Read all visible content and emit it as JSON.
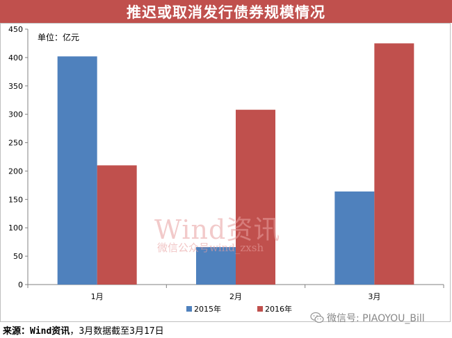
{
  "title": "推迟或取消发行债券规模情况",
  "unit": "单位：亿元",
  "watermark": {
    "main": "Wind资讯",
    "sub": "微信公众号wind_zxsh"
  },
  "wechat_tag": "微信号: PIAOYOU_Bill",
  "footer": {
    "source_label": "来源：Wind资讯",
    "source_note": "，3月数据截至3月17日"
  },
  "colors": {
    "series_2015": "#4f81bd",
    "series_2016": "#c0504d",
    "title_bg": "#c0504d"
  },
  "chart_data": {
    "type": "bar",
    "categories": [
      "1月",
      "2月",
      "3月"
    ],
    "series": [
      {
        "name": "2015年",
        "values": [
          402,
          66,
          164
        ]
      },
      {
        "name": "2016年",
        "values": [
          210,
          308,
          425
        ]
      }
    ],
    "ylim": [
      0,
      450
    ],
    "yticks": [
      0,
      50,
      100,
      150,
      200,
      250,
      300,
      350,
      400,
      450
    ],
    "grid": false,
    "legend_position": "bottom"
  }
}
